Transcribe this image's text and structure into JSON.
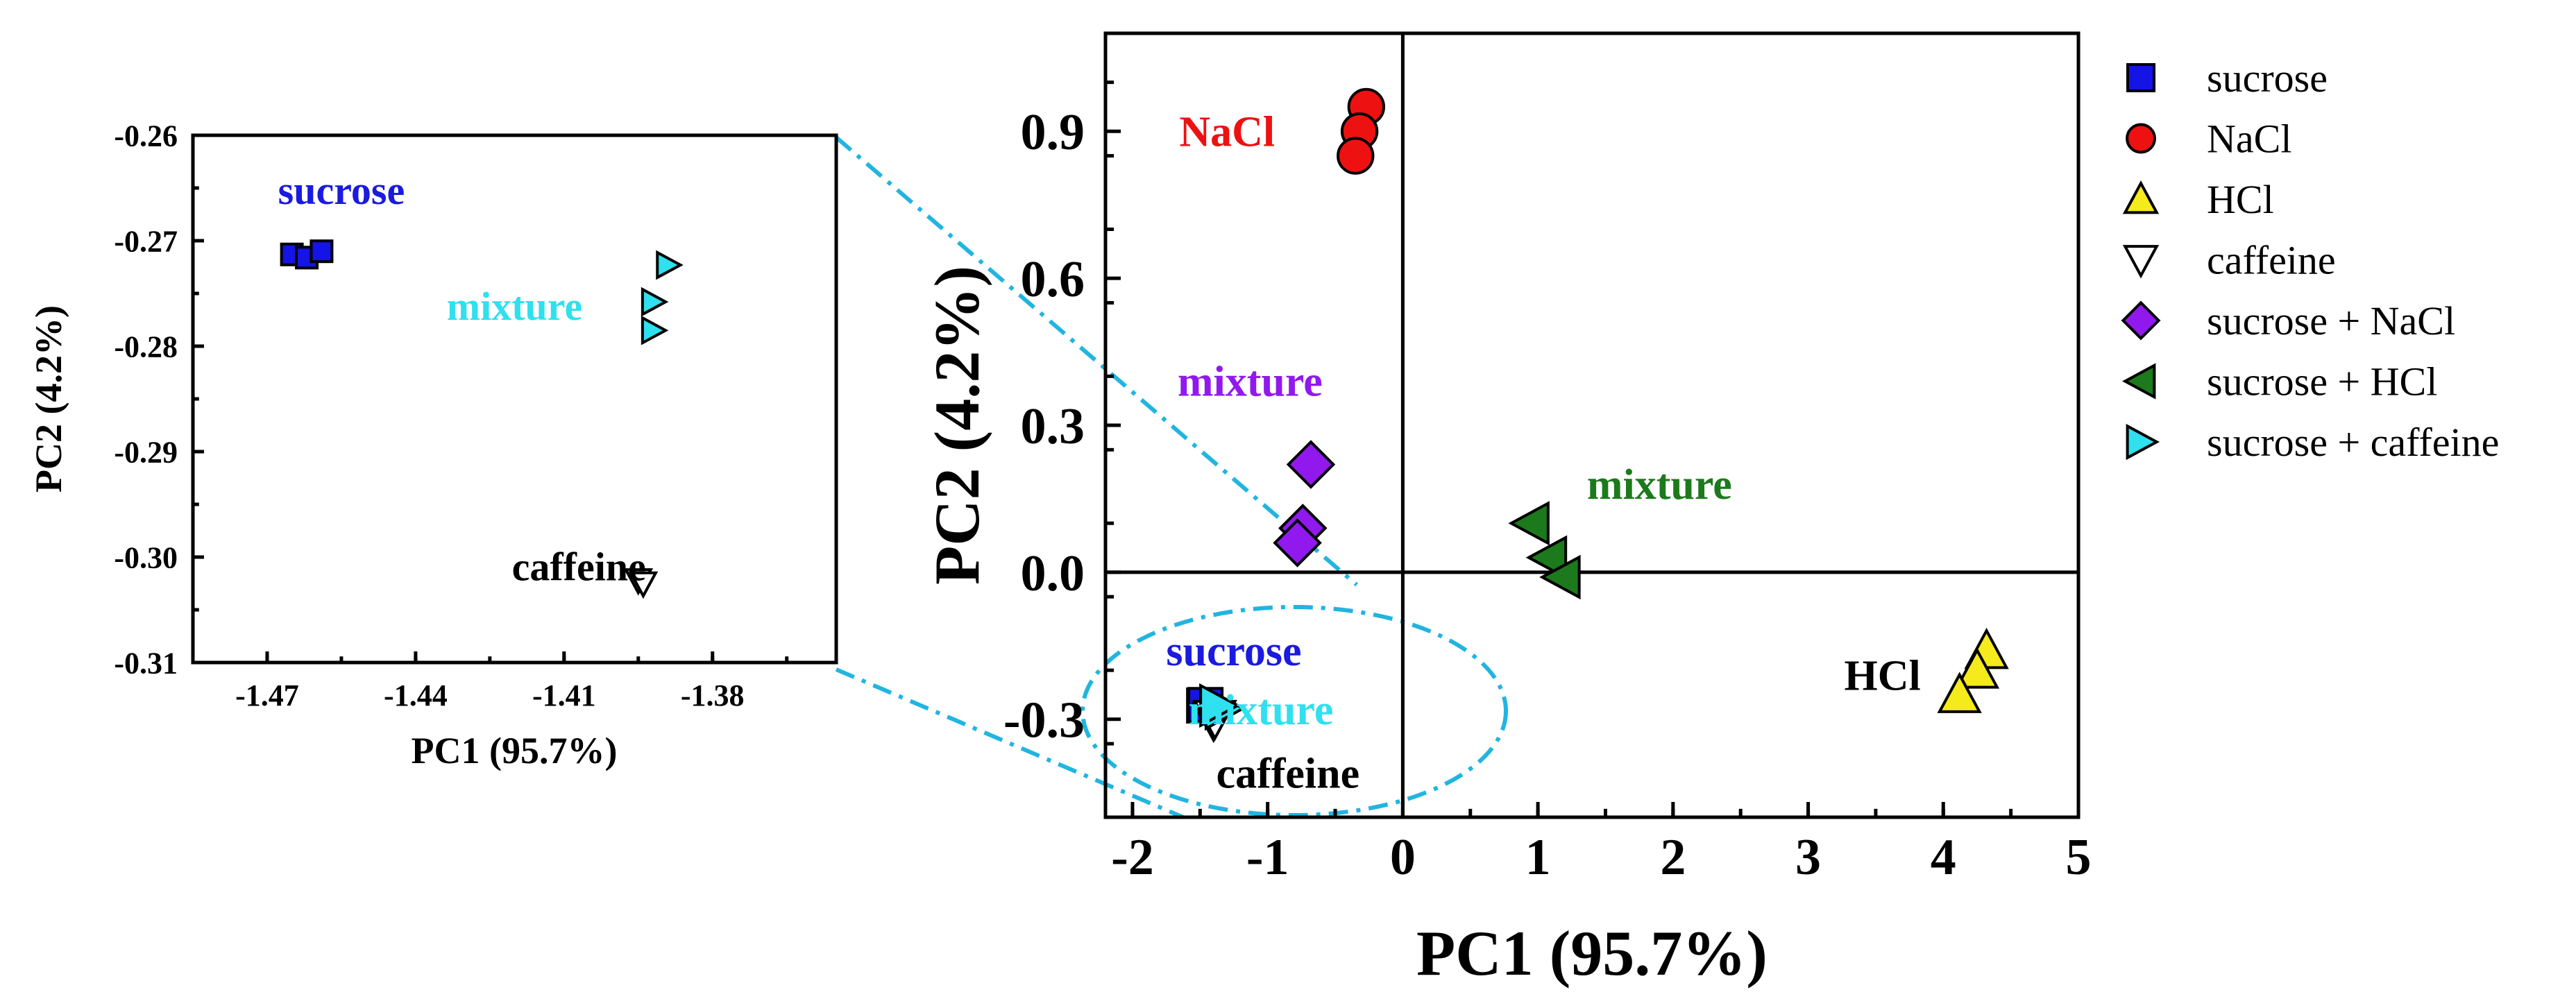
{
  "chart_data": [
    {
      "id": "inset",
      "type": "scatter",
      "xlabel": "PC1 (95.7%)",
      "ylabel": "PC2 (4.2%)",
      "xlim": [
        -1.485,
        -1.355
      ],
      "ylim": [
        -0.31,
        -0.26
      ],
      "xticks": [
        -1.47,
        -1.44,
        -1.41,
        -1.38
      ],
      "yticks": [
        -0.26,
        -0.27,
        -0.28,
        -0.29,
        -0.3,
        -0.31
      ],
      "xtick_labels": [
        "-1.47",
        "-1.44",
        "-1.41",
        "-1.38"
      ],
      "ytick_labels": [
        "-0.26",
        "-0.27",
        "-0.28",
        "-0.29",
        "-0.30",
        "-0.31"
      ],
      "series": [
        {
          "name": "sucrose",
          "marker": "square",
          "color": "#1414e6",
          "points": [
            [
              -1.465,
              -0.2713
            ],
            [
              -1.462,
              -0.2716
            ],
            [
              -1.459,
              -0.271
            ]
          ]
        },
        {
          "name": "sucrose + caffeine",
          "marker": "triangle-right",
          "color": "#2fe0ef",
          "points": [
            [
              -1.389,
              -0.2723
            ],
            [
              -1.392,
              -0.2758
            ],
            [
              -1.392,
              -0.2785
            ]
          ]
        },
        {
          "name": "caffeine",
          "marker": "triangle-down",
          "color": "#ffffff",
          "points": [
            [
              -1.395,
              -0.3022
            ],
            [
              -1.394,
              -0.3025
            ]
          ]
        }
      ],
      "annotations": [
        {
          "text": "sucrose",
          "x": -1.455,
          "y": -0.2665,
          "color": "#1a1ae0"
        },
        {
          "text": "mixture",
          "x": -1.42,
          "y": -0.2775,
          "color": "#2fe0ef"
        },
        {
          "text": "caffeine",
          "x": -1.407,
          "y": -0.3022,
          "color": "#000000"
        }
      ]
    },
    {
      "id": "main",
      "type": "scatter",
      "xlabel": "PC1 (95.7%)",
      "ylabel": "PC2 (4.2%)",
      "xlim": [
        -2.2,
        5.0
      ],
      "ylim": [
        -0.5,
        1.1
      ],
      "xticks": [
        -2,
        -1,
        0,
        1,
        2,
        3,
        4,
        5
      ],
      "yticks": [
        0.9,
        0.6,
        0.3,
        0.0,
        -0.3
      ],
      "xtick_labels": [
        "-2",
        "-1",
        "0",
        "1",
        "2",
        "3",
        "4",
        "5"
      ],
      "ytick_labels": [
        "0.9",
        "0.6",
        "0.3",
        "0.0",
        "-0.3"
      ],
      "zero_lines": true,
      "series": [
        {
          "name": "sucrose",
          "marker": "square",
          "color": "#1414e6",
          "points": [
            [
              -1.47,
              -0.272
            ],
            [
              -1.46,
              -0.271
            ]
          ]
        },
        {
          "name": "NaCl",
          "marker": "circle",
          "color": "#ee1111",
          "points": [
            [
              -0.27,
              0.95
            ],
            [
              -0.32,
              0.9
            ],
            [
              -0.35,
              0.85
            ]
          ]
        },
        {
          "name": "HCl",
          "marker": "triangle-up",
          "color": "#f5ea1b",
          "points": [
            [
              4.32,
              -0.16
            ],
            [
              4.25,
              -0.2
            ],
            [
              4.12,
              -0.25
            ]
          ]
        },
        {
          "name": "caffeine",
          "marker": "triangle-down",
          "color": "#ffffff",
          "points": [
            [
              -1.4,
              -0.302
            ],
            [
              -1.39,
              -0.298
            ]
          ]
        },
        {
          "name": "sucrose + NaCl",
          "marker": "diamond",
          "color": "#9119ee",
          "points": [
            [
              -0.68,
              0.22
            ],
            [
              -0.74,
              0.09
            ],
            [
              -0.78,
              0.06
            ]
          ]
        },
        {
          "name": "sucrose + HCl",
          "marker": "triangle-left",
          "color": "#1c7a1c",
          "points": [
            [
              0.95,
              0.1
            ],
            [
              1.08,
              0.03
            ],
            [
              1.18,
              -0.01
            ]
          ]
        },
        {
          "name": "sucrose + caffeine",
          "marker": "triangle-right",
          "color": "#2fe0ef",
          "points": [
            [
              -1.33,
              -0.278
            ],
            [
              -1.37,
              -0.272
            ]
          ]
        }
      ],
      "annotations": [
        {
          "text": "NaCl",
          "x": -1.3,
          "y": 0.87,
          "color": "#ee1111"
        },
        {
          "text": "mixture",
          "x": -1.13,
          "y": 0.36,
          "color": "#9119ee"
        },
        {
          "text": "mixture",
          "x": 1.9,
          "y": 0.15,
          "color": "#1c7a1c"
        },
        {
          "text": "HCl",
          "x": 3.55,
          "y": -0.24,
          "color": "#000000"
        },
        {
          "text": "sucrose",
          "x": -1.25,
          "y": -0.19,
          "color": "#1a1ae0"
        },
        {
          "text": "mixture",
          "x": -1.05,
          "y": -0.31,
          "color": "#2fe0ef"
        },
        {
          "text": "caffeine",
          "x": -0.85,
          "y": -0.44,
          "color": "#000000"
        }
      ]
    }
  ],
  "legend": {
    "placement": "right",
    "entries": [
      {
        "label": "sucrose",
        "marker": "square",
        "color": "#1414e6"
      },
      {
        "label": "NaCl",
        "marker": "circle",
        "color": "#ee1111"
      },
      {
        "label": "HCl",
        "marker": "triangle-up",
        "color": "#f5ea1b"
      },
      {
        "label": "caffeine",
        "marker": "triangle-down",
        "color": "#ffffff"
      },
      {
        "label": "sucrose + NaCl",
        "marker": "diamond",
        "color": "#9119ee"
      },
      {
        "label": "sucrose + HCl",
        "marker": "triangle-left",
        "color": "#1c7a1c"
      },
      {
        "label": "sucrose + caffeine",
        "marker": "triangle-right",
        "color": "#2fe0ef"
      }
    ]
  },
  "zoom_callout": {
    "color": "#21b5e0",
    "style": "dash-dot"
  }
}
